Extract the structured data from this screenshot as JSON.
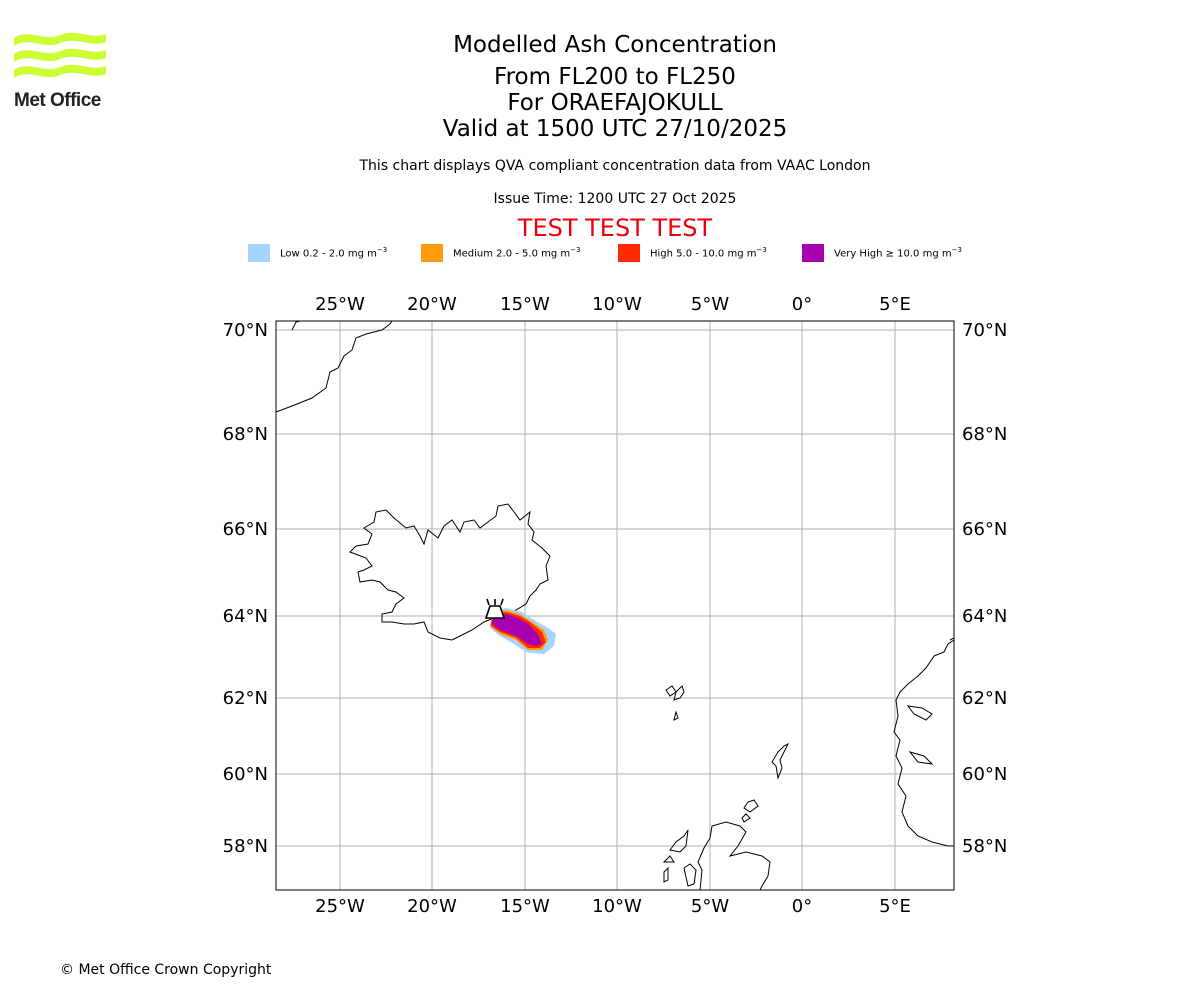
{
  "logo": {
    "text": "Met Office",
    "color": "#ccff33"
  },
  "title": {
    "line1": "Modelled Ash Concentration",
    "line2": "From FL200 to FL250",
    "line3": "For ORAEFAJOKULL",
    "line4": "Valid at 1500 UTC 27/10/2025"
  },
  "subtitle": "This chart displays QVA compliant concentration data from VAAC London",
  "issue_time": "Issue Time: 1200 UTC 27 Oct 2025",
  "test_banner": "TEST TEST TEST",
  "legend": [
    {
      "label": "Low 0.2 - 2.0 mg m",
      "color": "#a6d3ff"
    },
    {
      "label": "Medium 2.0 - 5.0 mg m",
      "color": "#ff9a0a"
    },
    {
      "label": "High 5.0 - 10.0 mg m",
      "color": "#ff2b00"
    },
    {
      "label": "Very High ≥ 10.0 mg m",
      "color": "#a600b0"
    }
  ],
  "legend_unit_exponent": "−3",
  "map": {
    "longitude_labels": [
      "25°W",
      "20°W",
      "15°W",
      "10°W",
      "5°W",
      "0°",
      "5°E"
    ],
    "latitude_labels": [
      "70°N",
      "68°N",
      "66°N",
      "64°N",
      "62°N",
      "60°N",
      "58°N"
    ],
    "volcano": "ORAEFAJOKULL",
    "grid_color": "#b0b0b0"
  },
  "copyright": "© Met Office Crown Copyright"
}
